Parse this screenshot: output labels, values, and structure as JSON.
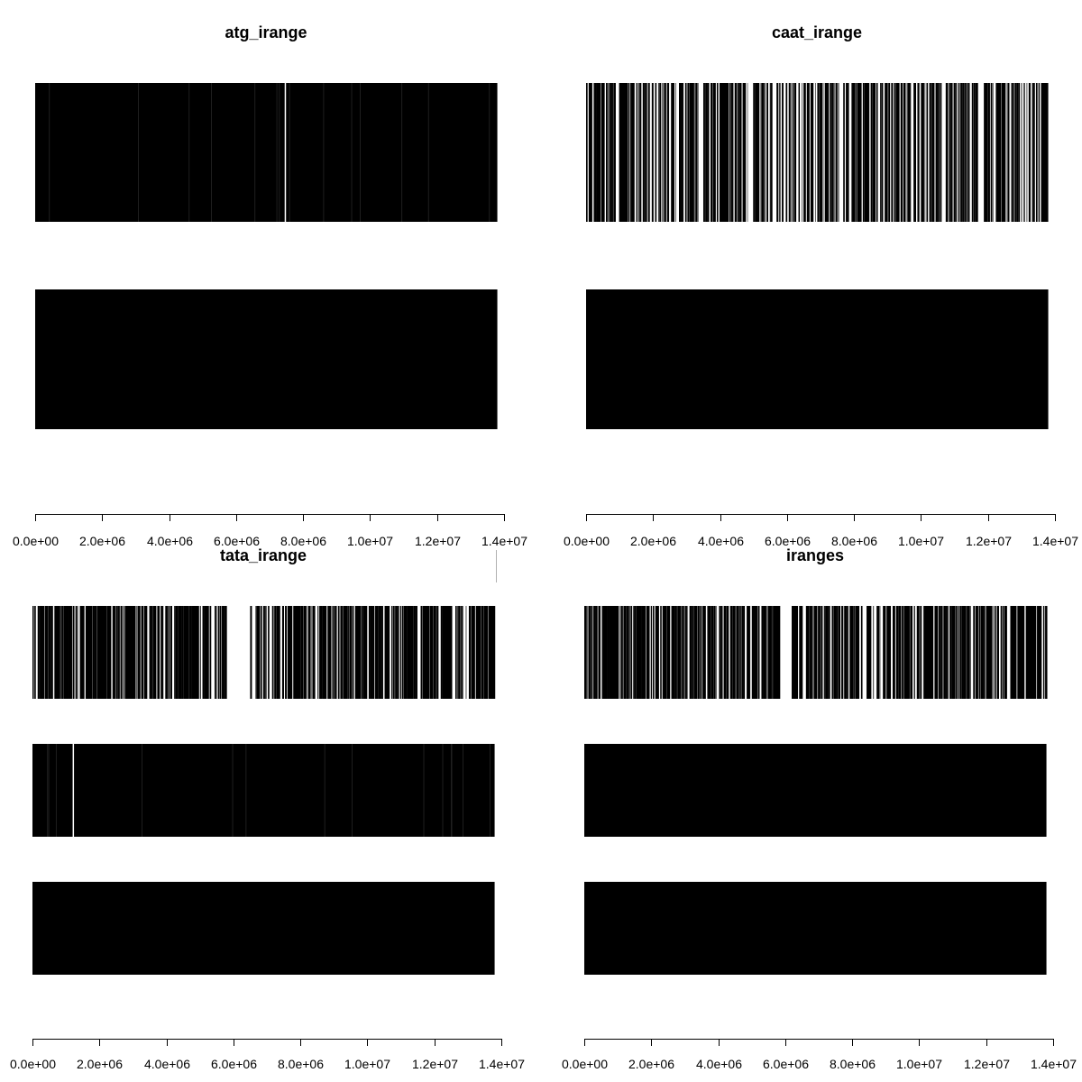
{
  "chart_data": [
    {
      "type": "range-density",
      "title": "atg_irange",
      "xlim": [
        0,
        14000000
      ],
      "x_ticks": [
        "0.0e+00",
        "2.0e+06",
        "4.0e+06",
        "6.0e+06",
        "8.0e+06",
        "1.0e+07",
        "1.2e+07",
        "1.4e+07"
      ],
      "x_tick_values": [
        0,
        2000000,
        4000000,
        6000000,
        8000000,
        10000000,
        12000000,
        14000000
      ],
      "tracks": [
        {
          "density": "dense",
          "start": 0,
          "end": 13800000,
          "gaps": [
            7450000
          ]
        },
        {
          "density": "solid",
          "start": 0,
          "end": 13800000,
          "gaps": []
        }
      ]
    },
    {
      "type": "range-density",
      "title": "caat_irange",
      "xlim": [
        0,
        14000000
      ],
      "x_ticks": [
        "0.0e+00",
        "2.0e+06",
        "4.0e+06",
        "6.0e+06",
        "8.0e+06",
        "1.0e+07",
        "1.2e+07",
        "1.4e+07"
      ],
      "x_tick_values": [
        0,
        2000000,
        4000000,
        6000000,
        8000000,
        10000000,
        12000000,
        14000000
      ],
      "tracks": [
        {
          "density": "sparse",
          "start": 0,
          "end": 13800000,
          "gaps": []
        },
        {
          "density": "solid",
          "start": 0,
          "end": 13800000,
          "gaps": []
        }
      ]
    },
    {
      "type": "range-density",
      "title": "tata_irange",
      "xlim": [
        0,
        14000000
      ],
      "x_ticks": [
        "0.0e+00",
        "2.0e+06",
        "4.0e+06",
        "6.0e+06",
        "8.0e+06",
        "1.0e+07",
        "1.2e+07",
        "1.4e+07"
      ],
      "x_tick_values": [
        0,
        2000000,
        4000000,
        6000000,
        8000000,
        10000000,
        12000000,
        14000000
      ],
      "tracks": [
        {
          "density": "medium",
          "start": 0,
          "end": 13800000,
          "gaps": [
            6000000,
            6300000
          ]
        },
        {
          "density": "dense",
          "start": 0,
          "end": 13800000,
          "gaps": [
            1200000
          ]
        },
        {
          "density": "solid",
          "start": 0,
          "end": 13800000,
          "gaps": []
        }
      ]
    },
    {
      "type": "range-density",
      "title": "iranges",
      "xlim": [
        0,
        14000000
      ],
      "x_ticks": [
        "0.0e+00",
        "2.0e+06",
        "4.0e+06",
        "6.0e+06",
        "8.0e+06",
        "1.0e+07",
        "1.2e+07",
        "1.4e+07"
      ],
      "x_tick_values": [
        0,
        2000000,
        4000000,
        6000000,
        8000000,
        10000000,
        12000000,
        14000000
      ],
      "tracks": [
        {
          "density": "medium",
          "start": 0,
          "end": 13800000,
          "gaps": [
            6000000
          ]
        },
        {
          "density": "solid",
          "start": 0,
          "end": 13800000,
          "gaps": []
        },
        {
          "density": "solid",
          "start": 0,
          "end": 13800000,
          "gaps": []
        }
      ]
    }
  ]
}
